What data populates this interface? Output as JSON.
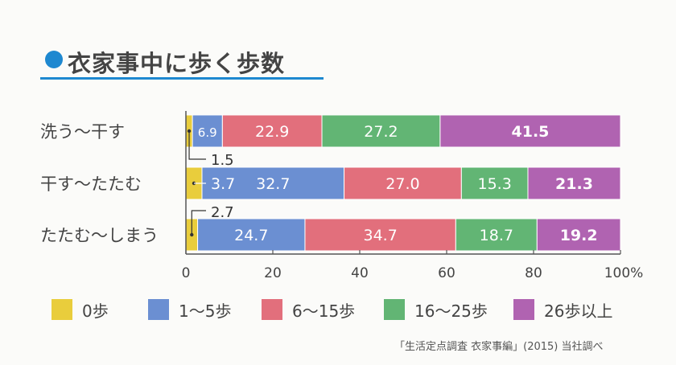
{
  "title": "衣家事中に歩く歩数",
  "source": "「生活定点調査 衣家事編」(2015) 当社調べ",
  "colors": {
    "accent": "#1e88d0",
    "series": [
      "#e9cd3c",
      "#6b8fd2",
      "#e26f7c",
      "#62b574",
      "#b063b1"
    ]
  },
  "chart_data": {
    "type": "bar",
    "orientation": "horizontal",
    "stacked": true,
    "title": "衣家事中に歩く歩数",
    "xlim": [
      0,
      100
    ],
    "x_ticks": [
      "0",
      "20",
      "40",
      "60",
      "80",
      "100%"
    ],
    "legend_position": "bottom",
    "categories": [
      "洗う～干す",
      "干す～たたむ",
      "たたむ～しまう"
    ],
    "series": [
      {
        "name": "0歩",
        "values": [
          1.5,
          3.7,
          2.7
        ],
        "labels": [
          "1.5",
          "3.7",
          "2.7"
        ]
      },
      {
        "name": "1～5歩",
        "values": [
          6.9,
          32.7,
          24.7
        ],
        "labels": [
          "6.9",
          "32.7",
          "24.7"
        ]
      },
      {
        "name": "6～15歩",
        "values": [
          22.9,
          27.0,
          34.7
        ],
        "labels": [
          "22.9",
          "27.0",
          "34.7"
        ]
      },
      {
        "name": "16～25歩",
        "values": [
          27.2,
          15.3,
          18.7
        ],
        "labels": [
          "27.2",
          "15.3",
          "18.7"
        ]
      },
      {
        "name": "26歩以上",
        "values": [
          41.5,
          21.3,
          19.2
        ],
        "labels": [
          "41.5",
          "21.3",
          "19.2"
        ]
      }
    ]
  }
}
